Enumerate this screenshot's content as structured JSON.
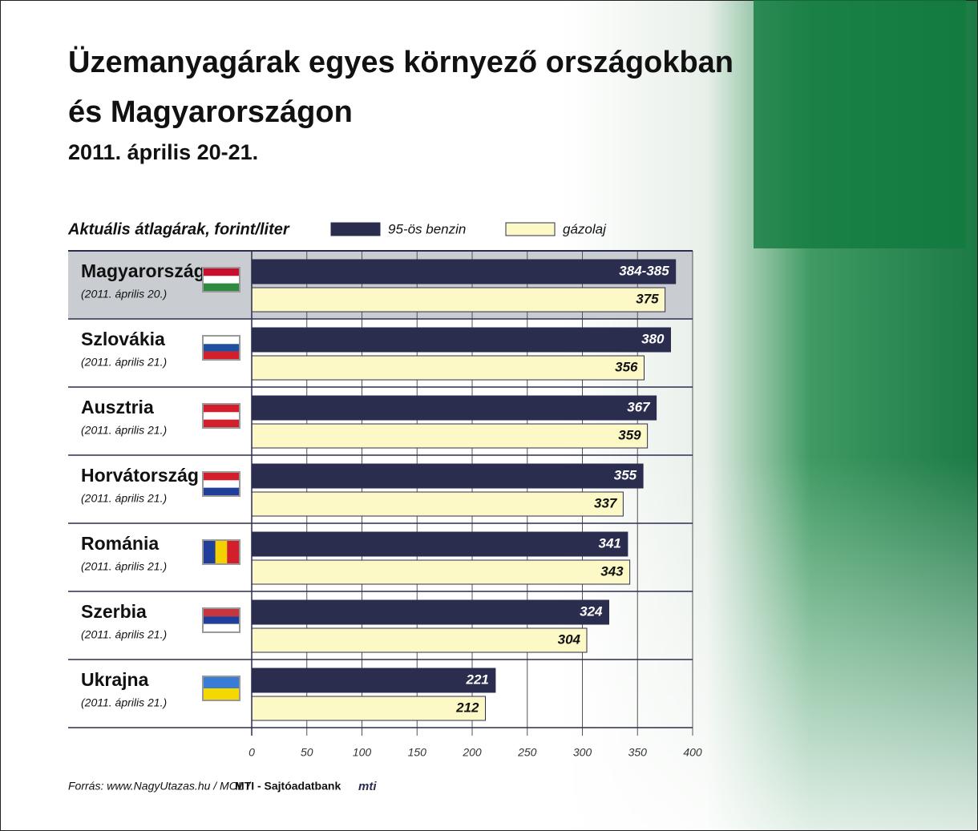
{
  "chart_data": {
    "type": "bar",
    "orientation": "horizontal",
    "title": [
      "Üzemanyagárak egyes környező országokban",
      "és Magyarországon"
    ],
    "subtitle": "2011. április 20-21.",
    "axis_label": "Aktuális átlagárak, forint/liter",
    "categories": [
      "Magyarország",
      "Szlovákia",
      "Ausztria",
      "Horvátország",
      "Románia",
      "Szerbia",
      "Ukrajna"
    ],
    "category_notes": [
      "(2011. április 20.)",
      "(2011. április 21.)",
      "(2011. április 21.)",
      "(2011. április 21.)",
      "(2011. április 21.)",
      "(2011. április 21.)",
      "(2011. április 21.)"
    ],
    "series": [
      {
        "name": "95-ös benzin",
        "color": "#2b2d4f",
        "values": [
          384.5,
          380,
          367,
          355,
          341,
          324,
          221
        ],
        "value_labels": [
          "384-385",
          "380",
          "367",
          "355",
          "341",
          "324",
          "221"
        ]
      },
      {
        "name": "gázolaj",
        "color": "#fdf9c6",
        "values": [
          375,
          356,
          359,
          337,
          343,
          304,
          212
        ]
      }
    ],
    "xlim": [
      0,
      400
    ],
    "xticks": [
      0,
      50,
      100,
      150,
      200,
      250,
      300,
      350,
      400
    ],
    "grid": true,
    "source": "Forrás: www.NagyUtazas.hu / MOL /",
    "source_bold": "MTI - Sajtóadatbank",
    "logo": "mti"
  }
}
